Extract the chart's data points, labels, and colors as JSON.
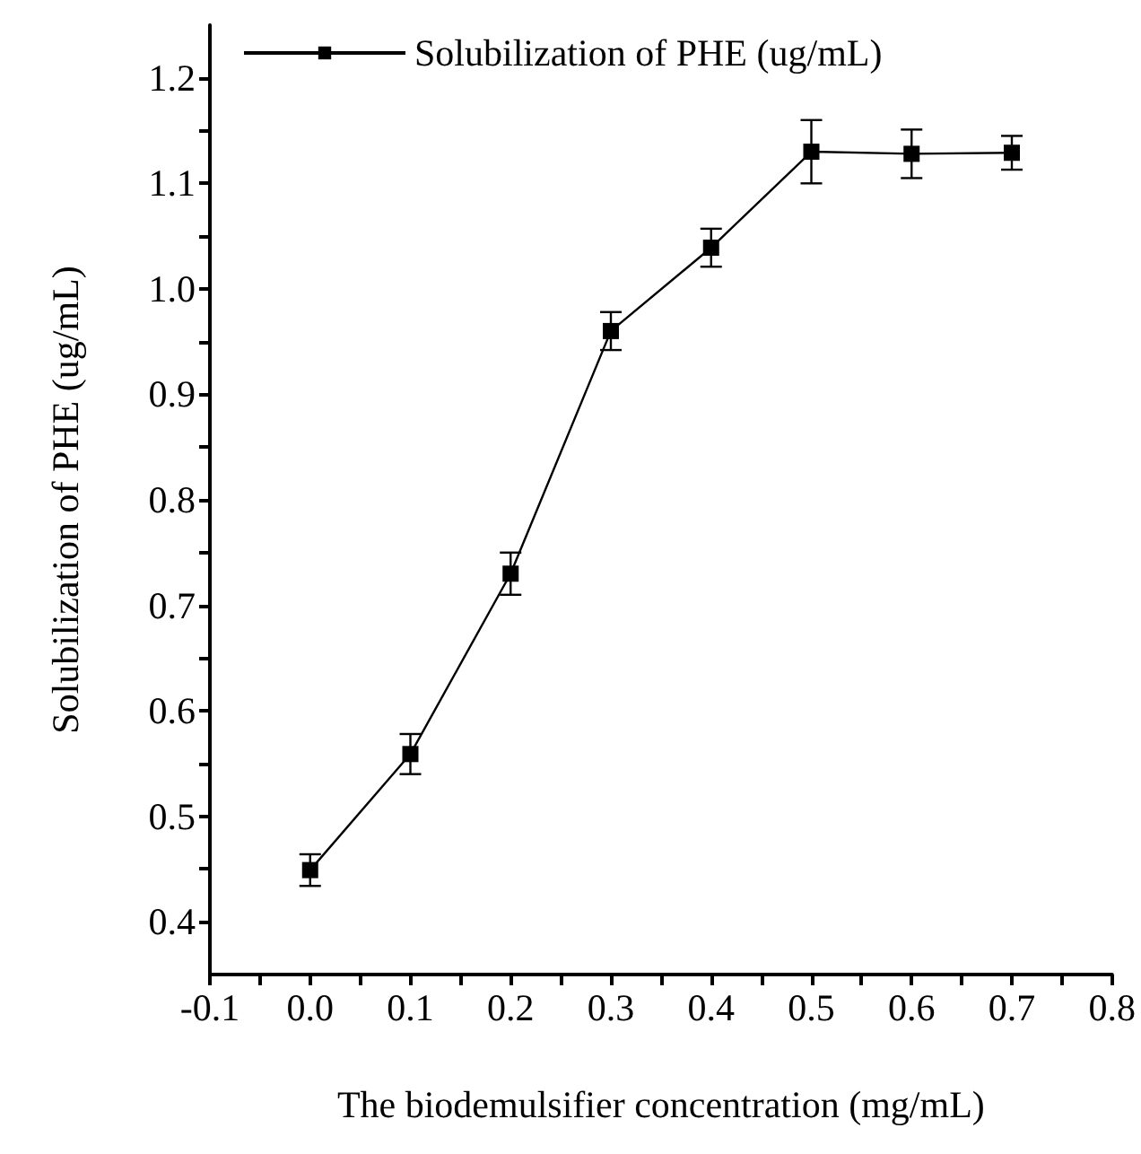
{
  "chart_data": {
    "type": "line",
    "xlabel": "The biodemulsifier concentration (mg/mL)",
    "ylabel": "Solubilization of PHE (ug/mL)",
    "x": [
      0.0,
      0.1,
      0.2,
      0.3,
      0.4,
      0.5,
      0.6,
      0.7
    ],
    "series": [
      {
        "name": "Solubilization of PHE (ug/mL)",
        "color": "#000000",
        "values": [
          0.449,
          0.559,
          0.73,
          0.96,
          1.039,
          1.13,
          1.128,
          1.129
        ],
        "errors": [
          0.015,
          0.019,
          0.02,
          0.018,
          0.018,
          0.03,
          0.023,
          0.016
        ]
      }
    ],
    "xlim": [
      -0.1,
      0.8
    ],
    "xticks": [
      {
        "value": -0.1,
        "label": "-0.1"
      },
      {
        "value": -0.05,
        "label": null
      },
      {
        "value": 0,
        "label": "0.0"
      },
      {
        "value": 0.05,
        "label": null
      },
      {
        "value": 0.1,
        "label": "0.1"
      },
      {
        "value": 0.15,
        "label": null
      },
      {
        "value": 0.2,
        "label": "0.2"
      },
      {
        "value": 0.25,
        "label": null
      },
      {
        "value": 0.3,
        "label": "0.3"
      },
      {
        "value": 0.35,
        "label": null
      },
      {
        "value": 0.4,
        "label": "0.4"
      },
      {
        "value": 0.45,
        "label": null
      },
      {
        "value": 0.5,
        "label": "0.5"
      },
      {
        "value": 0.55,
        "label": null
      },
      {
        "value": 0.6,
        "label": "0.6"
      },
      {
        "value": 0.65,
        "label": null
      },
      {
        "value": 0.7,
        "label": "0.7"
      },
      {
        "value": 0.75,
        "label": null
      },
      {
        "value": 0.8,
        "label": "0.8"
      }
    ],
    "ylim": [
      0.35,
      1.25
    ],
    "yticks": [
      {
        "value": 0.4,
        "label": "0.4"
      },
      {
        "value": 0.45,
        "label": null
      },
      {
        "value": 0.5,
        "label": "0.5"
      },
      {
        "value": 0.55,
        "label": null
      },
      {
        "value": 0.6,
        "label": "0.6"
      },
      {
        "value": 0.65,
        "label": null
      },
      {
        "value": 0.7,
        "label": "0.7"
      },
      {
        "value": 0.75,
        "label": null
      },
      {
        "value": 0.8,
        "label": "0.8"
      },
      {
        "value": 0.85,
        "label": null
      },
      {
        "value": 0.9,
        "label": "0.9"
      },
      {
        "value": 0.95,
        "label": null
      },
      {
        "value": 1.0,
        "label": "1.0"
      },
      {
        "value": 1.05,
        "label": null
      },
      {
        "value": 1.1,
        "label": "1.1"
      },
      {
        "value": 1.15,
        "label": null
      },
      {
        "value": 1.2,
        "label": "1.2"
      }
    ],
    "grid": false,
    "legend": "top left",
    "marker": "square",
    "line_style": "solid"
  }
}
